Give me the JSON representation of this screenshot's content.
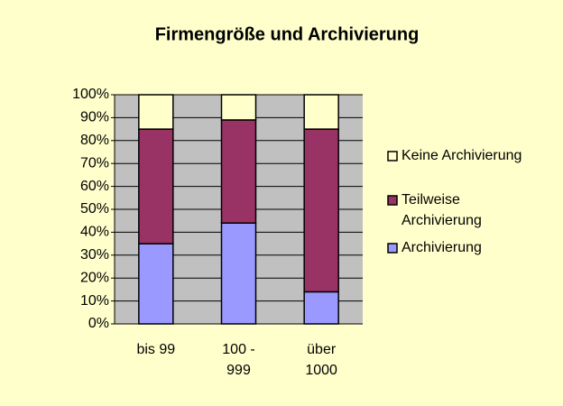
{
  "chart_data": {
    "type": "stacked_bar",
    "title": "Firmengröße und Archivierung",
    "categories": [
      "bis 99",
      "100 - 999",
      "über 1000"
    ],
    "series": [
      {
        "name": "Archivierung",
        "color": "#9999ff",
        "values": [
          35,
          44,
          14
        ]
      },
      {
        "name": "Teilweise Archivierung",
        "color": "#993366",
        "values": [
          50,
          45,
          71
        ]
      },
      {
        "name": "Keine Archivierung",
        "color": "#ffffcc",
        "values": [
          15,
          11,
          15
        ]
      }
    ],
    "ylim": [
      0,
      100
    ],
    "yticks": [
      {
        "value": 0,
        "label": "0%"
      },
      {
        "value": 10,
        "label": "10%"
      },
      {
        "value": 20,
        "label": "20%"
      },
      {
        "value": 30,
        "label": "30%"
      },
      {
        "value": 40,
        "label": "40%"
      },
      {
        "value": 50,
        "label": "50%"
      },
      {
        "value": 60,
        "label": "60%"
      },
      {
        "value": 70,
        "label": "70%"
      },
      {
        "value": 80,
        "label": "80%"
      },
      {
        "value": 90,
        "label": "90%"
      },
      {
        "value": 100,
        "label": "100%"
      }
    ],
    "grid": true,
    "plot_background": "#c0c0c0",
    "background": "#ffffcc",
    "legend": "right"
  }
}
